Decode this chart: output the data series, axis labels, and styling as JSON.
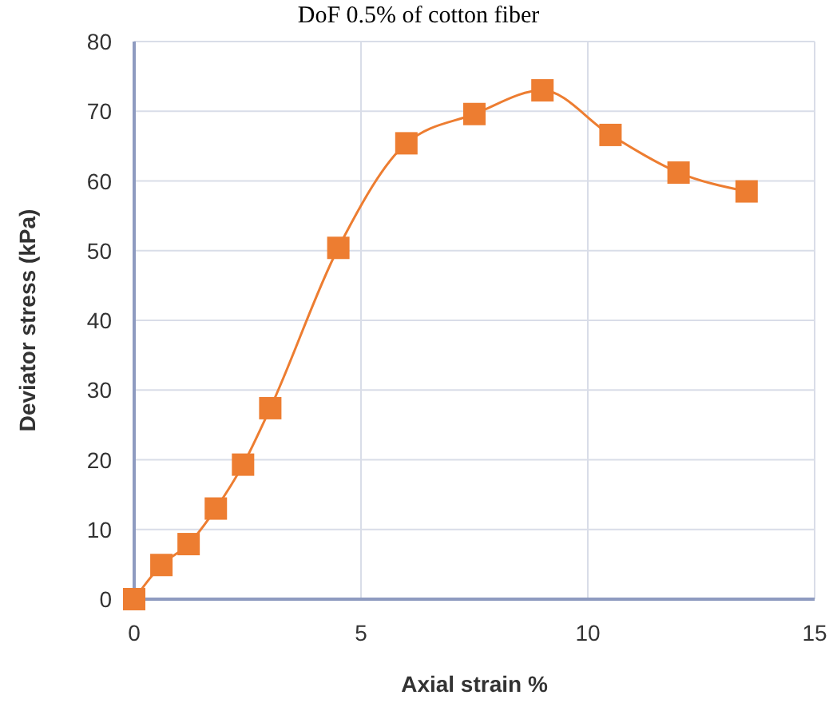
{
  "chart_data": {
    "type": "line",
    "title": "DoF 0.5% of cotton fiber",
    "xlabel": "Axial strain %",
    "ylabel": "Deviator stress (kPa)",
    "x": [
      0,
      0.6,
      1.2,
      1.8,
      2.4,
      3.0,
      4.5,
      6.0,
      7.5,
      9.0,
      10.5,
      12.0,
      13.5
    ],
    "series": [
      {
        "color": "#ed7d31",
        "values": [
          0,
          4.9,
          7.9,
          13.0,
          19.3,
          27.4,
          50.4,
          65.4,
          69.6,
          73.0,
          66.6,
          61.2,
          58.5
        ]
      }
    ],
    "xlim": [
      0,
      15
    ],
    "xticks": [
      0,
      5,
      10,
      15
    ],
    "ylim": [
      0,
      80
    ],
    "yticks": [
      0,
      10,
      20,
      30,
      40,
      50,
      60,
      70,
      80
    ],
    "grid": true,
    "marker": "square",
    "line_style": "solid"
  }
}
